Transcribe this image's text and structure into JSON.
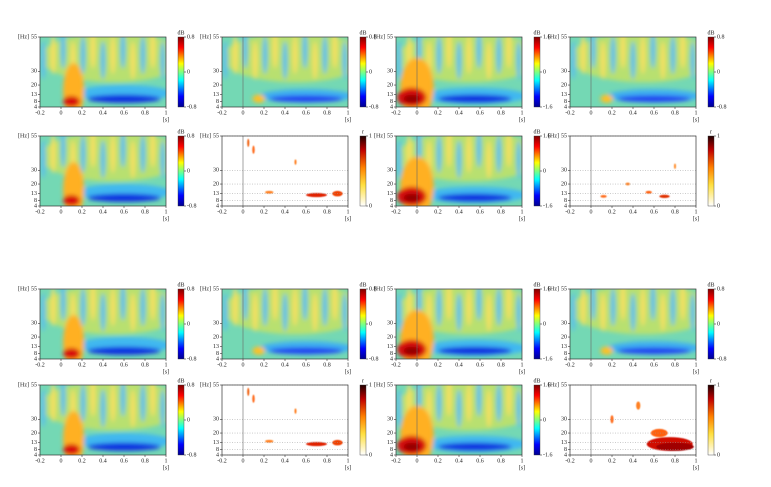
{
  "chart_data": [
    {
      "type": "heatmap",
      "ylabel": "[Hz]",
      "xlabel": "[s]",
      "xlim": [
        -0.2,
        1
      ],
      "xticks": [
        -0.2,
        0,
        0.2,
        0.4,
        0.6,
        0.8,
        1
      ],
      "ylim": [
        4,
        55
      ],
      "yticks": [
        4,
        8,
        13,
        20,
        30,
        55
      ],
      "colorbar": {
        "label": "dB",
        "clim": [
          -0.8,
          0.8
        ],
        "ticks": [
          -0.8,
          0,
          0.8
        ],
        "colormap": "jet"
      }
    },
    {
      "type": "heatmap",
      "ylabel": "[Hz]",
      "xlabel": "[s]",
      "xlim": [
        -0.2,
        1
      ],
      "xticks": [
        -0.2,
        0,
        0.2,
        0.4,
        0.6,
        0.8,
        1
      ],
      "ylim": [
        4,
        55
      ],
      "yticks": [
        4,
        8,
        13,
        20,
        30,
        55
      ],
      "colorbar": {
        "label": "dB",
        "clim": [
          -0.8,
          0.8
        ],
        "ticks": [
          -0.8,
          0,
          0.8
        ],
        "colormap": "jet"
      }
    },
    {
      "type": "heatmap",
      "ylabel": "[Hz]",
      "xlabel": "[s]",
      "xlim": [
        -0.2,
        1
      ],
      "xticks": [
        -0.2,
        0,
        0.2,
        0.4,
        0.6,
        0.8,
        1
      ],
      "ylim": [
        4,
        55
      ],
      "yticks": [
        4,
        8,
        13,
        20,
        30,
        55
      ],
      "colorbar": {
        "label": "dB",
        "clim": [
          -1.6,
          1.6
        ],
        "ticks": [
          -1.6,
          0,
          1.6
        ],
        "colormap": "jet"
      }
    },
    {
      "type": "heatmap",
      "ylabel": "[Hz]",
      "xlabel": "[s]",
      "xlim": [
        -0.2,
        1
      ],
      "xticks": [
        -0.2,
        0,
        0.2,
        0.4,
        0.6,
        0.8,
        1
      ],
      "ylim": [
        4,
        55
      ],
      "yticks": [
        4,
        8,
        13,
        20,
        30,
        55
      ],
      "colorbar": {
        "label": "dB",
        "clim": [
          -0.8,
          0.8
        ],
        "ticks": [
          -0.8,
          0,
          0.8
        ],
        "colormap": "jet"
      }
    },
    {
      "type": "heatmap",
      "ylabel": "[Hz]",
      "xlabel": "[s]",
      "xlim": [
        -0.2,
        1
      ],
      "xticks": [
        -0.2,
        0,
        0.2,
        0.4,
        0.6,
        0.8,
        1
      ],
      "ylim": [
        4,
        55
      ],
      "yticks": [
        4,
        8,
        13,
        20,
        30,
        55
      ],
      "colorbar": {
        "label": "dB",
        "clim": [
          -0.8,
          0.8
        ],
        "ticks": [
          -0.8,
          0,
          0.8
        ],
        "colormap": "jet"
      }
    },
    {
      "type": "heatmap",
      "ylabel": "[Hz]",
      "xlabel": "[s]",
      "xlim": [
        -0.2,
        1
      ],
      "xticks": [
        -0.2,
        0,
        0.2,
        0.4,
        0.6,
        0.8,
        1
      ],
      "ylim": [
        4,
        55
      ],
      "yticks": [
        4,
        8,
        13,
        20,
        30,
        55
      ],
      "grid": true,
      "colorbar": {
        "label": "r",
        "clim": [
          0,
          1
        ],
        "ticks": [
          0,
          1
        ],
        "colormap": "hot"
      }
    },
    {
      "type": "heatmap",
      "ylabel": "[Hz]",
      "xlabel": "[s]",
      "xlim": [
        -0.2,
        1
      ],
      "xticks": [
        -0.2,
        0,
        0.2,
        0.4,
        0.6,
        0.8,
        1
      ],
      "ylim": [
        4,
        55
      ],
      "yticks": [
        4,
        8,
        13,
        20,
        30,
        55
      ],
      "colorbar": {
        "label": "dB",
        "clim": [
          -1.6,
          1.6
        ],
        "ticks": [
          -1.6,
          0,
          1.6
        ],
        "colormap": "jet"
      }
    },
    {
      "type": "heatmap",
      "ylabel": "[Hz]",
      "xlabel": "[s]",
      "xlim": [
        -0.2,
        1
      ],
      "xticks": [
        -0.2,
        0,
        0.2,
        0.4,
        0.6,
        0.8,
        1
      ],
      "ylim": [
        4,
        55
      ],
      "yticks": [
        4,
        8,
        13,
        20,
        30,
        55
      ],
      "grid": true,
      "colorbar": {
        "label": "r",
        "clim": [
          0,
          1
        ],
        "ticks": [
          0,
          1
        ],
        "colormap": "hot"
      }
    },
    {
      "type": "heatmap",
      "ylabel": "[Hz]",
      "xlabel": "[s]",
      "xlim": [
        -0.2,
        1
      ],
      "xticks": [
        -0.2,
        0,
        0.2,
        0.4,
        0.6,
        0.8,
        1
      ],
      "ylim": [
        4,
        55
      ],
      "yticks": [
        4,
        8,
        13,
        20,
        30,
        55
      ],
      "colorbar": {
        "label": "dB",
        "clim": [
          -0.8,
          0.8
        ],
        "ticks": [
          -0.8,
          0,
          0.8
        ],
        "colormap": "jet"
      }
    },
    {
      "type": "heatmap",
      "ylabel": "[Hz]",
      "xlabel": "[s]",
      "xlim": [
        -0.2,
        1
      ],
      "xticks": [
        -0.2,
        0,
        0.2,
        0.4,
        0.6,
        0.8,
        1
      ],
      "ylim": [
        4,
        55
      ],
      "yticks": [
        4,
        8,
        13,
        20,
        30,
        55
      ],
      "colorbar": {
        "label": "dB",
        "clim": [
          -0.8,
          0.8
        ],
        "ticks": [
          -0.8,
          0,
          0.8
        ],
        "colormap": "jet"
      }
    },
    {
      "type": "heatmap",
      "ylabel": "[Hz]",
      "xlabel": "[s]",
      "xlim": [
        -0.2,
        1
      ],
      "xticks": [
        -0.2,
        0,
        0.2,
        0.4,
        0.6,
        0.8,
        1
      ],
      "ylim": [
        4,
        55
      ],
      "yticks": [
        4,
        8,
        13,
        20,
        30,
        55
      ],
      "colorbar": {
        "label": "dB",
        "clim": [
          -1.6,
          1.6
        ],
        "ticks": [
          -1.6,
          0,
          1.6
        ],
        "colormap": "jet"
      }
    },
    {
      "type": "heatmap",
      "ylabel": "[Hz]",
      "xlabel": "[s]",
      "xlim": [
        -0.2,
        1
      ],
      "xticks": [
        -0.2,
        0,
        0.2,
        0.4,
        0.6,
        0.8,
        1
      ],
      "ylim": [
        4,
        55
      ],
      "yticks": [
        4,
        8,
        13,
        20,
        30,
        55
      ],
      "colorbar": {
        "label": "dB",
        "clim": [
          -0.8,
          0.8
        ],
        "ticks": [
          -0.8,
          0,
          0.8
        ],
        "colormap": "jet"
      }
    },
    {
      "type": "heatmap",
      "ylabel": "[Hz]",
      "xlabel": "[s]",
      "xlim": [
        -0.2,
        1
      ],
      "xticks": [
        -0.2,
        0,
        0.2,
        0.4,
        0.6,
        0.8,
        1
      ],
      "ylim": [
        4,
        55
      ],
      "yticks": [
        4,
        8,
        13,
        20,
        30,
        55
      ],
      "colorbar": {
        "label": "dB",
        "clim": [
          -0.8,
          0.8
        ],
        "ticks": [
          -0.8,
          0,
          0.8
        ],
        "colormap": "jet"
      }
    },
    {
      "type": "heatmap",
      "ylabel": "[Hz]",
      "xlabel": "[s]",
      "xlim": [
        -0.2,
        1
      ],
      "xticks": [
        -0.2,
        0,
        0.2,
        0.4,
        0.6,
        0.8,
        1
      ],
      "ylim": [
        4,
        55
      ],
      "yticks": [
        4,
        8,
        13,
        20,
        30,
        55
      ],
      "grid": true,
      "colorbar": {
        "label": "r",
        "clim": [
          0,
          1
        ],
        "ticks": [
          0,
          1
        ],
        "colormap": "hot"
      }
    },
    {
      "type": "heatmap",
      "ylabel": "[Hz]",
      "xlabel": "[s]",
      "xlim": [
        -0.2,
        1
      ],
      "xticks": [
        -0.2,
        0,
        0.2,
        0.4,
        0.6,
        0.8,
        1
      ],
      "ylim": [
        4,
        55
      ],
      "yticks": [
        4,
        8,
        13,
        20,
        30,
        55
      ],
      "colorbar": {
        "label": "dB",
        "clim": [
          -1.6,
          1.6
        ],
        "ticks": [
          -1.6,
          0,
          1.6
        ],
        "colormap": "jet"
      }
    },
    {
      "type": "heatmap",
      "ylabel": "[Hz]",
      "xlabel": "[s]",
      "xlim": [
        -0.2,
        1
      ],
      "xticks": [
        -0.2,
        0,
        0.2,
        0.4,
        0.6,
        0.8,
        1
      ],
      "ylim": [
        4,
        55
      ],
      "yticks": [
        4,
        8,
        13,
        20,
        30,
        55
      ],
      "grid": true,
      "colorbar": {
        "label": "r",
        "clim": [
          0,
          1
        ],
        "ticks": [
          0,
          1
        ],
        "colormap": "hot"
      }
    }
  ]
}
